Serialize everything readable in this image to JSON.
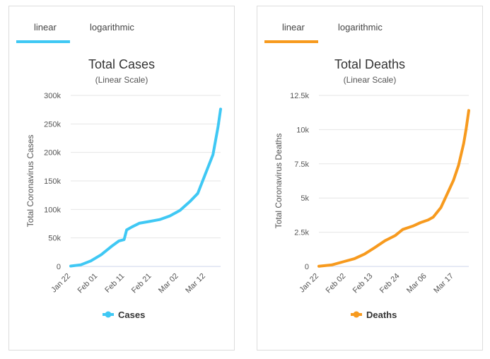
{
  "panels": [
    {
      "tabs": [
        {
          "label": "linear",
          "active": true
        },
        {
          "label": "logarithmic",
          "active": false
        }
      ],
      "accent": "#3fc8f4"
    },
    {
      "tabs": [
        {
          "label": "linear",
          "active": true
        },
        {
          "label": "logarithmic",
          "active": false
        }
      ],
      "accent": "#f79a1e"
    }
  ],
  "chart_data": [
    {
      "type": "line",
      "title": "Total Cases",
      "subtitle": "(Linear Scale)",
      "ylabel": "Total Coronavirus Cases",
      "xlabel": "",
      "ylim": [
        0,
        300000
      ],
      "yticks": [
        0,
        50000,
        100000,
        150000,
        200000,
        250000,
        300000
      ],
      "ytick_labels": [
        "0",
        "50k",
        "100k",
        "150k",
        "200k",
        "250k",
        "300k"
      ],
      "xtick_labels": [
        "Jan 22",
        "Feb 01",
        "Feb 11",
        "Feb 21",
        "Mar 02",
        "Mar 12"
      ],
      "grid": true,
      "legend": "bottom",
      "color": "#3fc8f4",
      "series": [
        {
          "name": "Cases",
          "x": [
            "Jan 22",
            "Jan 26",
            "Jan 30",
            "Feb 03",
            "Feb 07",
            "Feb 10",
            "Feb 12",
            "Feb 13",
            "Feb 15",
            "Feb 18",
            "Feb 22",
            "Feb 26",
            "Mar 01",
            "Mar 05",
            "Mar 09",
            "Mar 12",
            "Mar 15",
            "Mar 18",
            "Mar 20",
            "Mar 21"
          ],
          "values": [
            580,
            2800,
            9800,
            20600,
            34900,
            44800,
            47000,
            64000,
            69000,
            75800,
            78900,
            82200,
            88500,
            98300,
            114200,
            128000,
            162000,
            196000,
            245000,
            276000
          ]
        }
      ]
    },
    {
      "type": "line",
      "title": "Total Deaths",
      "subtitle": "(Linear Scale)",
      "ylabel": "Total Coronavirus Deaths",
      "xlabel": "",
      "ylim": [
        0,
        12500
      ],
      "yticks": [
        0,
        2500,
        5000,
        7500,
        10000,
        12500
      ],
      "ytick_labels": [
        "0",
        "2.5k",
        "5k",
        "7.5k",
        "10k",
        "12.5k"
      ],
      "xtick_labels": [
        "Jan 22",
        "Feb 02",
        "Feb 13",
        "Feb 24",
        "Mar 06",
        "Mar 17"
      ],
      "grid": true,
      "legend": "bottom",
      "color": "#f79a1e",
      "series": [
        {
          "name": "Deaths",
          "x": [
            "Jan 22",
            "Jan 27",
            "Feb 01",
            "Feb 05",
            "Feb 09",
            "Feb 13",
            "Feb 17",
            "Feb 21",
            "Feb 24",
            "Feb 28",
            "Mar 02",
            "Mar 05",
            "Mar 07",
            "Mar 10",
            "Mar 13",
            "Mar 15",
            "Mar 17",
            "Mar 19",
            "Mar 20",
            "Mar 21"
          ],
          "values": [
            17,
            106,
            362,
            565,
            910,
            1380,
            1873,
            2250,
            2700,
            2950,
            3200,
            3400,
            3600,
            4300,
            5500,
            6300,
            7400,
            9000,
            10100,
            11400
          ]
        }
      ]
    }
  ]
}
